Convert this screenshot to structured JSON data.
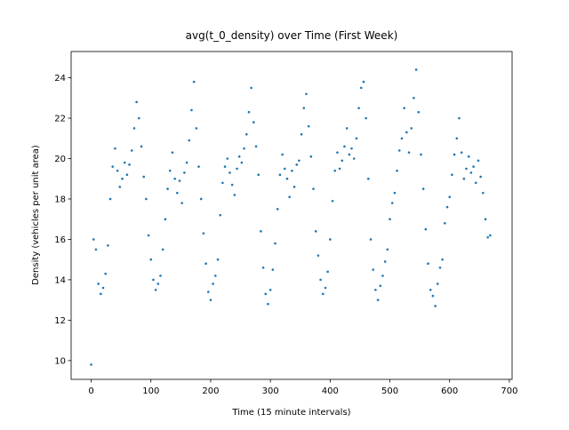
{
  "chart_data": {
    "type": "scatter",
    "title": "avg(t_0_density) over Time (First Week)",
    "x_label": "Time (15 minute intervals)",
    "y_label": "Density (vehicles per unit area)",
    "color": "#1f77b4",
    "xlim": [
      -33.6,
      704.6
    ],
    "ylim": [
      9.07,
      25.3
    ],
    "xticks": [
      0,
      100,
      200,
      300,
      400,
      500,
      600,
      700
    ],
    "yticks": [
      10,
      12,
      14,
      16,
      18,
      20,
      22,
      24
    ],
    "x": [
      0,
      4,
      8,
      12,
      16,
      20,
      24,
      28,
      32,
      36,
      40,
      44,
      48,
      52,
      56,
      60,
      64,
      68,
      72,
      76,
      80,
      84,
      88,
      92,
      96,
      100,
      104,
      108,
      112,
      116,
      120,
      124,
      128,
      132,
      136,
      140,
      144,
      148,
      152,
      156,
      160,
      164,
      168,
      172,
      176,
      180,
      184,
      188,
      192,
      196,
      200,
      204,
      208,
      212,
      216,
      220,
      224,
      228,
      232,
      236,
      240,
      244,
      248,
      252,
      256,
      260,
      264,
      268,
      272,
      276,
      280,
      284,
      288,
      292,
      296,
      300,
      304,
      308,
      312,
      316,
      320,
      324,
      328,
      332,
      336,
      340,
      344,
      348,
      352,
      356,
      360,
      364,
      368,
      372,
      376,
      380,
      384,
      388,
      392,
      396,
      400,
      404,
      408,
      412,
      416,
      420,
      424,
      428,
      432,
      436,
      440,
      444,
      448,
      452,
      456,
      460,
      464,
      468,
      472,
      476,
      480,
      484,
      488,
      492,
      496,
      500,
      504,
      508,
      512,
      516,
      520,
      524,
      528,
      532,
      536,
      540,
      544,
      548,
      552,
      556,
      560,
      564,
      568,
      572,
      576,
      580,
      584,
      588,
      592,
      596,
      600,
      604,
      608,
      612,
      616,
      620,
      624,
      628,
      632,
      636,
      640,
      644,
      648,
      652,
      656,
      660,
      664,
      668
    ],
    "values": [
      9.8,
      16.0,
      15.5,
      13.8,
      13.3,
      13.6,
      14.3,
      15.7,
      18.0,
      19.6,
      20.5,
      19.4,
      18.6,
      19.0,
      19.8,
      19.2,
      19.7,
      20.4,
      21.5,
      22.8,
      22.0,
      20.6,
      19.1,
      18.0,
      16.2,
      15.0,
      14.0,
      13.5,
      13.8,
      14.2,
      15.5,
      17.0,
      18.5,
      19.4,
      20.3,
      19.0,
      18.3,
      18.9,
      17.8,
      19.3,
      19.8,
      20.9,
      22.4,
      23.8,
      21.5,
      19.6,
      18.0,
      16.3,
      14.8,
      13.4,
      13.0,
      13.8,
      14.2,
      15.0,
      17.2,
      18.8,
      19.6,
      20.0,
      19.3,
      18.7,
      18.2,
      19.5,
      20.1,
      19.8,
      20.5,
      21.2,
      22.3,
      23.5,
      21.8,
      20.6,
      19.2,
      16.4,
      14.6,
      13.3,
      12.8,
      13.5,
      14.5,
      15.8,
      17.5,
      19.2,
      20.2,
      19.5,
      19.0,
      18.1,
      19.4,
      18.6,
      19.7,
      19.9,
      21.2,
      22.5,
      23.2,
      21.6,
      20.1,
      18.5,
      16.4,
      15.2,
      14.0,
      13.3,
      13.6,
      14.4,
      16.0,
      17.9,
      19.4,
      20.3,
      19.5,
      19.9,
      20.6,
      21.5,
      20.2,
      20.5,
      20.0,
      21.0,
      22.5,
      23.5,
      23.8,
      22.0,
      19.0,
      16.0,
      14.5,
      13.5,
      13.0,
      13.7,
      14.2,
      14.9,
      15.5,
      17.0,
      17.8,
      18.3,
      19.4,
      20.4,
      21.0,
      22.5,
      21.3,
      20.3,
      21.5,
      23.0,
      24.4,
      22.3,
      20.2,
      18.5,
      16.5,
      14.8,
      13.5,
      13.2,
      12.7,
      13.8,
      14.6,
      15.0,
      16.8,
      17.6,
      18.1,
      19.2,
      20.2,
      21.0,
      22.0,
      20.3,
      19.0,
      19.5,
      20.1,
      19.3,
      19.6,
      18.8,
      19.9,
      19.1,
      18.3,
      17.0,
      16.1,
      16.2
    ]
  }
}
